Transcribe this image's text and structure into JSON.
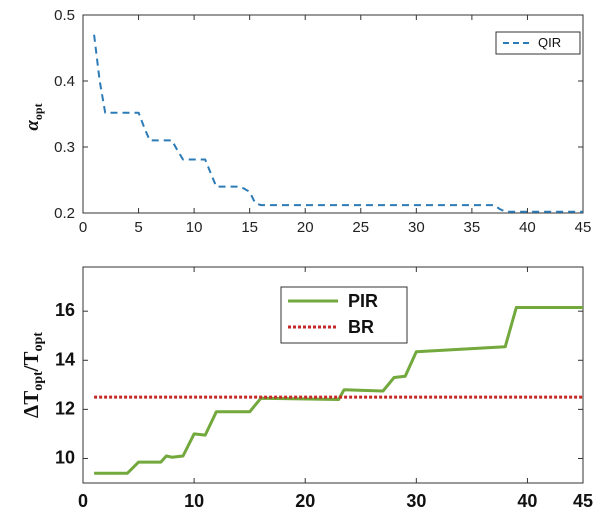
{
  "chart_data": [
    {
      "type": "line",
      "ylabel": "α",
      "ylabel_sub": "opt",
      "xlim": [
        0,
        45
      ],
      "ylim": [
        0.2,
        0.5
      ],
      "xticks": [
        0,
        5,
        10,
        15,
        20,
        25,
        30,
        35,
        40,
        45
      ],
      "yticks": [
        0.2,
        0.3,
        0.4,
        0.5
      ],
      "grid": false,
      "legend_position": "top-right",
      "series": [
        {
          "name": "QIR",
          "color": "#2c7bb6",
          "line_style": "dashed",
          "x": [
            1,
            1.5,
            2,
            5,
            5.5,
            6,
            8,
            8.5,
            9,
            11,
            11.5,
            12,
            14,
            14.5,
            15,
            15.5,
            16,
            37,
            37.5,
            38,
            45
          ],
          "y": [
            0.47,
            0.4,
            0.352,
            0.352,
            0.33,
            0.31,
            0.31,
            0.295,
            0.281,
            0.281,
            0.26,
            0.24,
            0.24,
            0.237,
            0.232,
            0.215,
            0.212,
            0.212,
            0.206,
            0.202,
            0.202
          ]
        }
      ]
    },
    {
      "type": "line",
      "ylabel": "ΔT",
      "ylabel_sub": "opt",
      "ylabel_denominator": "/T",
      "ylabel_denominator_sub": "opt",
      "xlim": [
        0,
        45
      ],
      "ylim": [
        9,
        17.8
      ],
      "xticks": [
        0,
        10,
        20,
        30,
        40,
        45
      ],
      "yticks": [
        10,
        12,
        14,
        16
      ],
      "grid": false,
      "legend_position": "top-center",
      "series": [
        {
          "name": "PIR",
          "color": "#72a83c",
          "line_style": "solid",
          "x": [
            1,
            4,
            5,
            7,
            7.5,
            8,
            9,
            10,
            11,
            12,
            15,
            16,
            23,
            23.5,
            27,
            28,
            29,
            30,
            38,
            39,
            45
          ],
          "y": [
            9.4,
            9.4,
            9.85,
            9.85,
            10.1,
            10.05,
            10.1,
            11.0,
            10.95,
            11.9,
            11.9,
            12.45,
            12.4,
            12.8,
            12.75,
            13.3,
            13.35,
            14.35,
            14.55,
            16.15,
            16.15
          ]
        },
        {
          "name": "BR",
          "color": "#c62828",
          "line_style": "dotted",
          "x": [
            1,
            45
          ],
          "y": [
            12.5,
            12.5
          ]
        }
      ]
    }
  ]
}
